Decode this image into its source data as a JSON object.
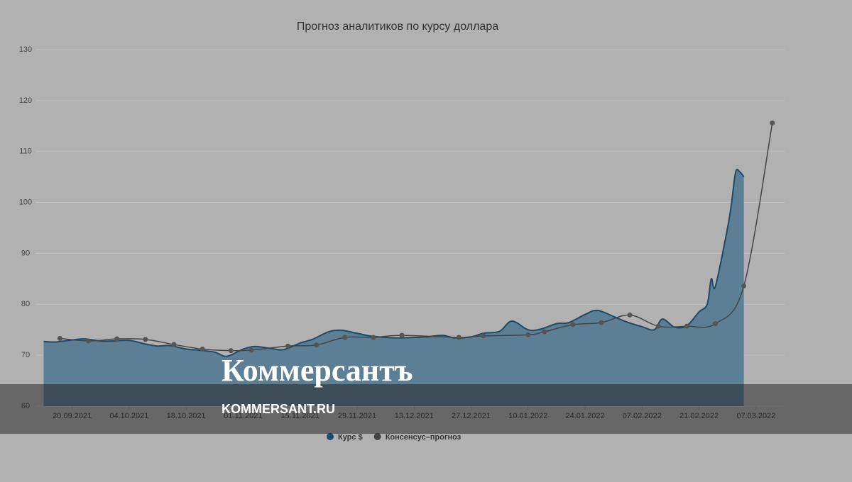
{
  "chart_data": {
    "type": "line",
    "title": "Прогноз аналитиков по курсу доллара",
    "xlim": [
      "11.09.2021",
      "14.03.2022"
    ],
    "xticks": [
      "20.09.2021",
      "04.10.2021",
      "18.10.2021",
      "01.11.2021",
      "15.11.2021",
      "29.11.2021",
      "13.12.2021",
      "27.12.2021",
      "10.01.2022",
      "24.01.2022",
      "07.02.2022",
      "21.02.2022",
      "07.03.2022"
    ],
    "ylim": [
      60,
      130
    ],
    "yticks": [
      60,
      70,
      80,
      90,
      100,
      110,
      120,
      130
    ],
    "grid": true,
    "series": [
      {
        "name": "Курс $",
        "color": "#1d4a6b",
        "fill": "#5c7f95",
        "area": true,
        "x": [
          "13.09.2021",
          "16.09.2021",
          "20.09.2021",
          "23.09.2021",
          "27.09.2021",
          "30.09.2021",
          "04.10.2021",
          "08.10.2021",
          "11.10.2021",
          "14.10.2021",
          "18.10.2021",
          "21.10.2021",
          "25.10.2021",
          "28.10.2021",
          "01.11.2021",
          "04.11.2021",
          "08.11.2021",
          "11.11.2021",
          "15.11.2021",
          "18.11.2021",
          "22.11.2021",
          "25.11.2021",
          "29.11.2021",
          "02.12.2021",
          "06.12.2021",
          "09.12.2021",
          "13.12.2021",
          "16.12.2021",
          "20.12.2021",
          "23.12.2021",
          "27.12.2021",
          "30.12.2021",
          "03.01.2022",
          "06.01.2022",
          "10.01.2022",
          "13.01.2022",
          "17.01.2022",
          "20.01.2022",
          "24.01.2022",
          "27.01.2022",
          "31.01.2022",
          "03.02.2022",
          "07.02.2022",
          "10.02.2022",
          "12.02.2022",
          "15.02.2022",
          "18.02.2022",
          "21.02.2022",
          "23.02.2022",
          "24.02.2022",
          "25.02.2022",
          "28.02.2022",
          "01.03.2022",
          "02.03.2022",
          "03.03.2022",
          "04.03.2022"
        ],
        "values": [
          72.7,
          72.6,
          73.0,
          73.2,
          72.8,
          72.8,
          72.9,
          72.2,
          71.8,
          71.9,
          71.2,
          71.0,
          70.6,
          69.8,
          71.2,
          71.7,
          71.3,
          71.1,
          72.4,
          73.1,
          74.6,
          74.9,
          74.3,
          73.8,
          73.5,
          73.4,
          73.5,
          73.6,
          73.9,
          73.4,
          73.6,
          74.3,
          74.7,
          76.7,
          75.0,
          75.1,
          76.2,
          76.4,
          78.0,
          78.8,
          77.6,
          76.6,
          75.6,
          75.0,
          77.1,
          75.5,
          75.8,
          78.5,
          80.0,
          85.0,
          83.5,
          95.0,
          100.0,
          106.0,
          106.0,
          105.0
        ]
      },
      {
        "name": "Консенсус–прогноз",
        "color": "#444444",
        "marker": "#555555",
        "x": [
          "17.09.2021",
          "24.09.2021",
          "01.10.2021",
          "08.10.2021",
          "15.10.2021",
          "22.10.2021",
          "29.10.2021",
          "03.11.2021",
          "12.11.2021",
          "19.11.2021",
          "26.11.2021",
          "03.12.2021",
          "10.12.2021",
          "24.12.2021",
          "30.12.2021",
          "10.01.2022",
          "14.01.2022",
          "21.01.2022",
          "28.01.2022",
          "04.02.2022",
          "11.02.2022",
          "18.02.2022",
          "25.02.2022",
          "04.03.2022",
          "11.03.2022"
        ],
        "values": [
          73.3,
          72.8,
          73.2,
          73.1,
          72.1,
          71.2,
          70.9,
          71.0,
          71.8,
          72.0,
          73.5,
          73.5,
          73.9,
          73.5,
          73.8,
          74.0,
          74.6,
          76.0,
          76.4,
          77.9,
          75.7,
          75.7,
          76.2,
          83.6,
          115.6
        ]
      }
    ]
  },
  "watermark": {
    "logo": "Коммерсантъ",
    "url": "KOMMERSANT.RU"
  }
}
